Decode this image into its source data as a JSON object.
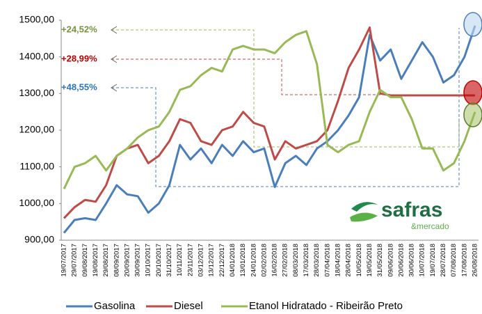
{
  "chart_data": {
    "type": "line",
    "categories": [
      "19/07/2017",
      "29/07/2017",
      "09/08/2017",
      "19/08/2017",
      "29/08/2017",
      "08/09/2017",
      "20/09/2017",
      "30/09/2017",
      "10/10/2017",
      "20/10/2017",
      "31/10/2017",
      "10/11/2017",
      "23/11/2017",
      "03/12/2017",
      "13/12/2017",
      "22/12/2017",
      "04/01/2018",
      "13/01/2018",
      "24/01/2018",
      "02/02/2018",
      "16/02/2018",
      "27/02/2018",
      "08/03/2018",
      "17/03/2018",
      "28/03/2018",
      "07/04/2018",
      "18/04/2018",
      "28/04/2018",
      "10/05/2018",
      "19/05/2018",
      "31/05/2018",
      "09/06/2018",
      "20/06/2018",
      "30/06/2018",
      "10/07/2018",
      "19/07/2018",
      "28/07/2018",
      "07/08/2018",
      "17/08/2018",
      "26/08/2018"
    ],
    "series": [
      {
        "name": "Gasolina",
        "color": "#4a7ebb",
        "values": [
          920,
          955,
          960,
          955,
          1000,
          1050,
          1025,
          1020,
          975,
          1000,
          1050,
          1160,
          1120,
          1150,
          1110,
          1160,
          1130,
          1170,
          1140,
          1150,
          1045,
          1110,
          1130,
          1105,
          1150,
          1170,
          1200,
          1240,
          1290,
          1460,
          1390,
          1420,
          1340,
          1390,
          1440,
          1400,
          1330,
          1350,
          1400,
          1485
        ]
      },
      {
        "name": "Diesel",
        "color": "#be4b48",
        "values": [
          960,
          990,
          1010,
          1005,
          1050,
          1130,
          1150,
          1160,
          1110,
          1130,
          1170,
          1230,
          1220,
          1170,
          1160,
          1200,
          1210,
          1250,
          1220,
          1210,
          1120,
          1170,
          1150,
          1160,
          1170,
          1200,
          1280,
          1370,
          1420,
          1480,
          1300,
          1295,
          1295,
          1295,
          1295,
          1295,
          1295,
          1295,
          1295,
          1295
        ]
      },
      {
        "name": "Etanol Hidratado - Ribeirão Preto",
        "color": "#98b954",
        "values": [
          1040,
          1100,
          1110,
          1130,
          1090,
          1130,
          1150,
          1180,
          1200,
          1210,
          1250,
          1310,
          1320,
          1350,
          1370,
          1360,
          1420,
          1430,
          1420,
          1420,
          1410,
          1440,
          1460,
          1470,
          1380,
          1160,
          1140,
          1160,
          1170,
          1250,
          1310,
          1290,
          1290,
          1230,
          1150,
          1150,
          1090,
          1110,
          1170,
          1250
        ]
      }
    ],
    "ylim": [
      900,
      1500
    ],
    "yticks": [
      {
        "value": 900,
        "label": "900,00"
      },
      {
        "value": 1000,
        "label": "1000,00"
      },
      {
        "value": 1100,
        "label": "1100,00"
      },
      {
        "value": 1200,
        "label": "1200,00"
      },
      {
        "value": 1300,
        "label": "1300,00"
      },
      {
        "value": 1400,
        "label": "1400,00"
      },
      {
        "value": 1500,
        "label": "1500,00"
      }
    ],
    "annotations": [
      "+24,52%",
      "+28,99%",
      "+48,55%"
    ],
    "logo": {
      "name": "safras",
      "tagline": "&mercado"
    },
    "legend": "bottom"
  }
}
